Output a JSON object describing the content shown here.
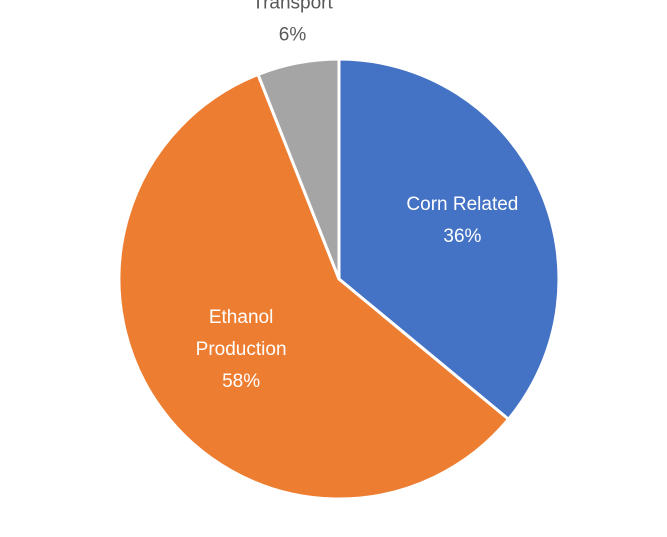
{
  "chart_data": {
    "type": "pie",
    "start_angle_deg": 0,
    "direction": "clockwise",
    "slices": [
      {
        "label_lines": [
          "Corn Related"
        ],
        "value": 36,
        "value_label": "36%",
        "color": "#4472C4",
        "label_position": "inside"
      },
      {
        "label_lines": [
          "Ethanol",
          "Production"
        ],
        "value": 58,
        "value_label": "58%",
        "color": "#ED7D31",
        "label_position": "inside"
      },
      {
        "label_lines": [
          "Transport"
        ],
        "value": 6,
        "value_label": "6%",
        "color": "#A5A5A5",
        "label_position": "outside"
      }
    ]
  }
}
